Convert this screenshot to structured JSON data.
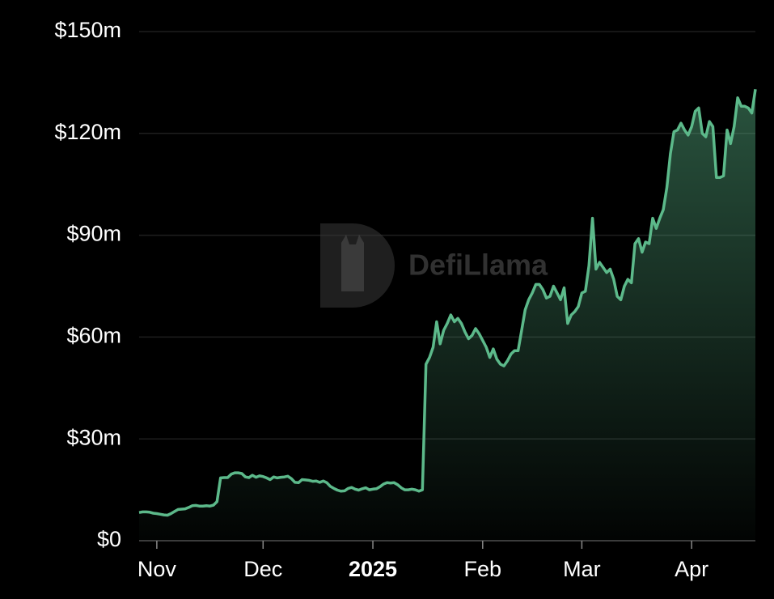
{
  "chart_data": {
    "type": "area",
    "watermark": "DefiLlama",
    "color": "#5cb98a",
    "grid": true,
    "ylim": [
      0,
      150
    ],
    "yticks": [
      {
        "value": 0,
        "label": "$0"
      },
      {
        "value": 30,
        "label": "$30m"
      },
      {
        "value": 60,
        "label": "$60m"
      },
      {
        "value": 90,
        "label": "$90m"
      },
      {
        "value": 120,
        "label": "$120m"
      },
      {
        "value": 150,
        "label": "$150m"
      }
    ],
    "categories": [
      null,
      null,
      null,
      null,
      null,
      "Nov",
      null,
      null,
      null,
      null,
      null,
      null,
      null,
      null,
      null,
      null,
      null,
      null,
      null,
      null,
      null,
      null,
      null,
      null,
      null,
      null,
      null,
      null,
      null,
      null,
      null,
      null,
      null,
      null,
      null,
      "Dec",
      null,
      null,
      null,
      null,
      null,
      null,
      null,
      null,
      null,
      null,
      null,
      null,
      null,
      null,
      null,
      null,
      null,
      null,
      null,
      null,
      null,
      null,
      null,
      null,
      null,
      null,
      null,
      null,
      null,
      null,
      "2025",
      null,
      null,
      null,
      null,
      null,
      null,
      null,
      null,
      null,
      null,
      null,
      null,
      null,
      null,
      null,
      null,
      null,
      null,
      null,
      null,
      null,
      null,
      null,
      null,
      null,
      null,
      null,
      null,
      null,
      null,
      "Feb",
      null,
      null,
      null,
      null,
      null,
      null,
      null,
      null,
      null,
      null,
      null,
      null,
      null,
      null,
      null,
      null,
      null,
      null,
      null,
      null,
      null,
      null,
      null,
      null,
      null,
      null,
      null,
      "Mar",
      null,
      null,
      null,
      null,
      null,
      null,
      null,
      null,
      null,
      null,
      null,
      null,
      null,
      null,
      null,
      null,
      null,
      null,
      null,
      null,
      null,
      null,
      null,
      null,
      null,
      null,
      null,
      null,
      null,
      null,
      "Apr",
      null,
      null,
      null,
      null,
      null,
      null,
      null,
      null,
      null,
      null,
      null,
      null,
      null,
      null,
      null,
      null,
      null,
      null
    ],
    "values": [
      8.3,
      8.5,
      8.5,
      8.4,
      8.1,
      8.0,
      7.8,
      7.6,
      7.5,
      8.0,
      8.6,
      9.2,
      9.3,
      9.4,
      9.8,
      10.3,
      10.4,
      10.2,
      10.2,
      10.3,
      10.2,
      10.5,
      11.5,
      18.5,
      18.6,
      18.6,
      19.6,
      20.0,
      20.0,
      19.8,
      18.8,
      18.6,
      19.3,
      18.7,
      19.1,
      18.9,
      18.5,
      18.0,
      18.8,
      18.5,
      18.7,
      18.8,
      19.0,
      18.3,
      17.2,
      17.1,
      18.0,
      17.9,
      17.8,
      17.5,
      17.6,
      17.2,
      17.6,
      17.1,
      16.0,
      15.4,
      14.9,
      14.6,
      14.7,
      15.4,
      15.7,
      15.2,
      14.9,
      15.3,
      15.6,
      15.0,
      15.2,
      15.3,
      15.9,
      16.7,
      17.1,
      17.0,
      17.1,
      16.5,
      15.6,
      15.0,
      15.0,
      15.2,
      15.0,
      14.6,
      15.0,
      52,
      54,
      57,
      64.5,
      58,
      62,
      64,
      66.5,
      64.5,
      65.5,
      64,
      61.5,
      59.5,
      60.5,
      62.5,
      61,
      59,
      57,
      54,
      56.5,
      53.5,
      52,
      51.5,
      53,
      55,
      56,
      56,
      62,
      68,
      71,
      73,
      75.5,
      75.5,
      74,
      71.5,
      72,
      75,
      73,
      71,
      74.5,
      64,
      66.5,
      67.5,
      69,
      73,
      73.5,
      81,
      95,
      80,
      82,
      80.5,
      79,
      80,
      77,
      72,
      71,
      75,
      77,
      76,
      87.5,
      89,
      85,
      88,
      87.5,
      95,
      92,
      95,
      97.5,
      104,
      114,
      120.5,
      121,
      123,
      121,
      119.5,
      122,
      126.5,
      127.5,
      120,
      119,
      123.5,
      122,
      107,
      107,
      107.5,
      121,
      117,
      122,
      130.5,
      128,
      128,
      127.5,
      126,
      133
    ]
  }
}
